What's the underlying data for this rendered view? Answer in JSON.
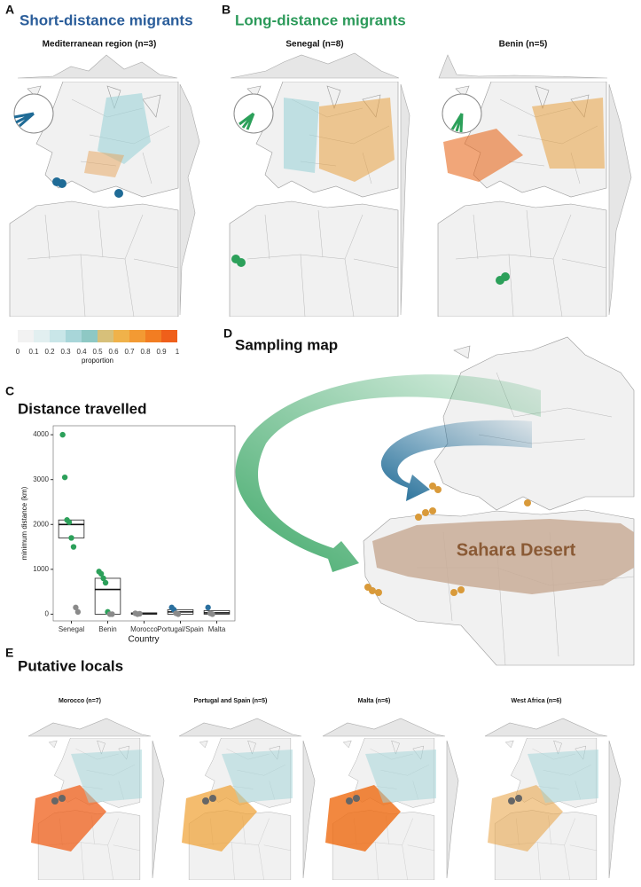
{
  "panel_a": {
    "letter": "A",
    "title": "Short-distance migrants",
    "maps": [
      "Mediterranean region (n=3)"
    ]
  },
  "panel_b": {
    "letter": "B",
    "title": "Long-distance migrants",
    "maps": [
      "Senegal (n=8)",
      "Benin (n=5)"
    ]
  },
  "colorbar": {
    "ticks": [
      0,
      0.1,
      0.2,
      0.3,
      0.4,
      0.5,
      0.6,
      0.7,
      0.8,
      0.9,
      1
    ],
    "label": "proportion"
  },
  "panel_c": {
    "letter": "C"
  },
  "chart_data": {
    "type": "box",
    "title": "Distance travelled",
    "x_label": "Country",
    "y_label": "minimum distance (km)",
    "categories": [
      "Senegal",
      "Benin",
      "Morocco",
      "Portugal/Spain",
      "Malta"
    ],
    "ylim": [
      -150,
      4200
    ],
    "yticks": [
      0,
      1000,
      2000,
      3000,
      4000
    ],
    "boxes": [
      {
        "q1": 1700,
        "median": 2000,
        "q3": 2100,
        "points": [
          {
            "value": 4000,
            "color": "#2ca05a"
          },
          {
            "value": 3050,
            "color": "#2ca05a"
          },
          {
            "value": 2100,
            "color": "#2ca05a"
          },
          {
            "value": 2050,
            "color": "#2ca05a"
          },
          {
            "value": 1700,
            "color": "#2ca05a"
          },
          {
            "value": 1500,
            "color": "#2ca05a"
          },
          {
            "value": 150,
            "color": "#8a8a8a"
          },
          {
            "value": 50,
            "color": "#8a8a8a"
          }
        ]
      },
      {
        "q1": 0,
        "median": 550,
        "q3": 800,
        "points": [
          {
            "value": 950,
            "color": "#2ca05a"
          },
          {
            "value": 900,
            "color": "#2ca05a"
          },
          {
            "value": 800,
            "color": "#2ca05a"
          },
          {
            "value": 700,
            "color": "#2ca05a"
          },
          {
            "value": 50,
            "color": "#2ca05a"
          },
          {
            "value": 0,
            "color": "#8a8a8a"
          },
          {
            "value": 0,
            "color": "#8a8a8a"
          }
        ]
      },
      {
        "q1": 0,
        "median": 10,
        "q3": 30,
        "points": [
          {
            "value": 20,
            "color": "#8a8a8a"
          },
          {
            "value": 0,
            "color": "#8a8a8a"
          },
          {
            "value": 10,
            "color": "#8a8a8a"
          }
        ]
      },
      {
        "q1": 0,
        "median": 50,
        "q3": 100,
        "points": [
          {
            "value": 150,
            "color": "#2a6f9e"
          },
          {
            "value": 100,
            "color": "#2a6f9e"
          },
          {
            "value": 20,
            "color": "#8a8a8a"
          },
          {
            "value": 0,
            "color": "#8a8a8a"
          }
        ]
      },
      {
        "q1": 0,
        "median": 30,
        "q3": 80,
        "points": [
          {
            "value": 150,
            "color": "#2a6f9e"
          },
          {
            "value": 20,
            "color": "#8a8a8a"
          },
          {
            "value": 0,
            "color": "#8a8a8a"
          }
        ]
      }
    ]
  },
  "panel_d": {
    "letter": "D",
    "title": "Sampling map",
    "region": "Sahara Desert"
  },
  "panel_e": {
    "letter": "E",
    "title": "Putative locals",
    "maps": [
      "Morocco (n=7)",
      "Portugal and Spain (n=5)",
      "Malta (n=6)",
      "West Africa (n=6)"
    ]
  }
}
